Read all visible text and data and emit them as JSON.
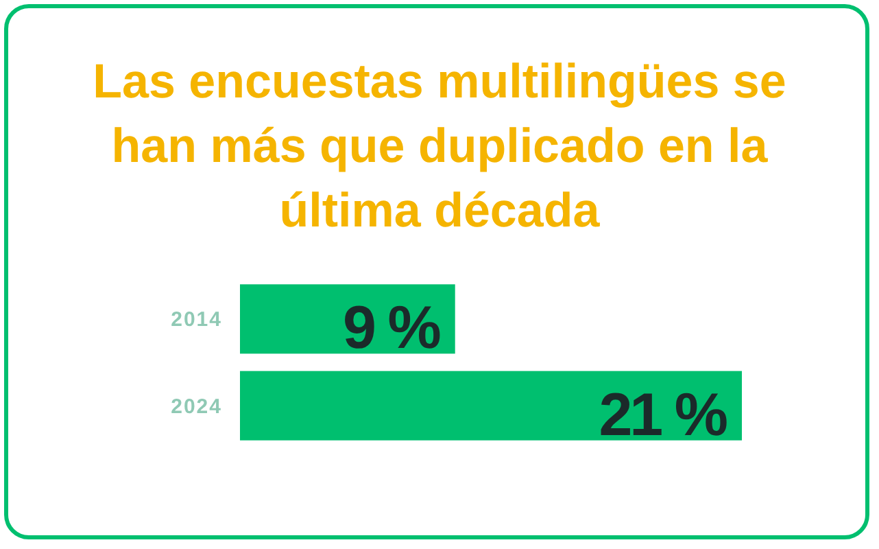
{
  "chart_data": {
    "type": "bar",
    "orientation": "horizontal",
    "title": "Las encuestas multilingües se han más que duplicado en la última década",
    "categories": [
      "2014",
      "2024"
    ],
    "values": [
      9,
      21
    ],
    "value_labels": [
      "9 %",
      "21 %"
    ],
    "color": "#00bf6f"
  }
}
